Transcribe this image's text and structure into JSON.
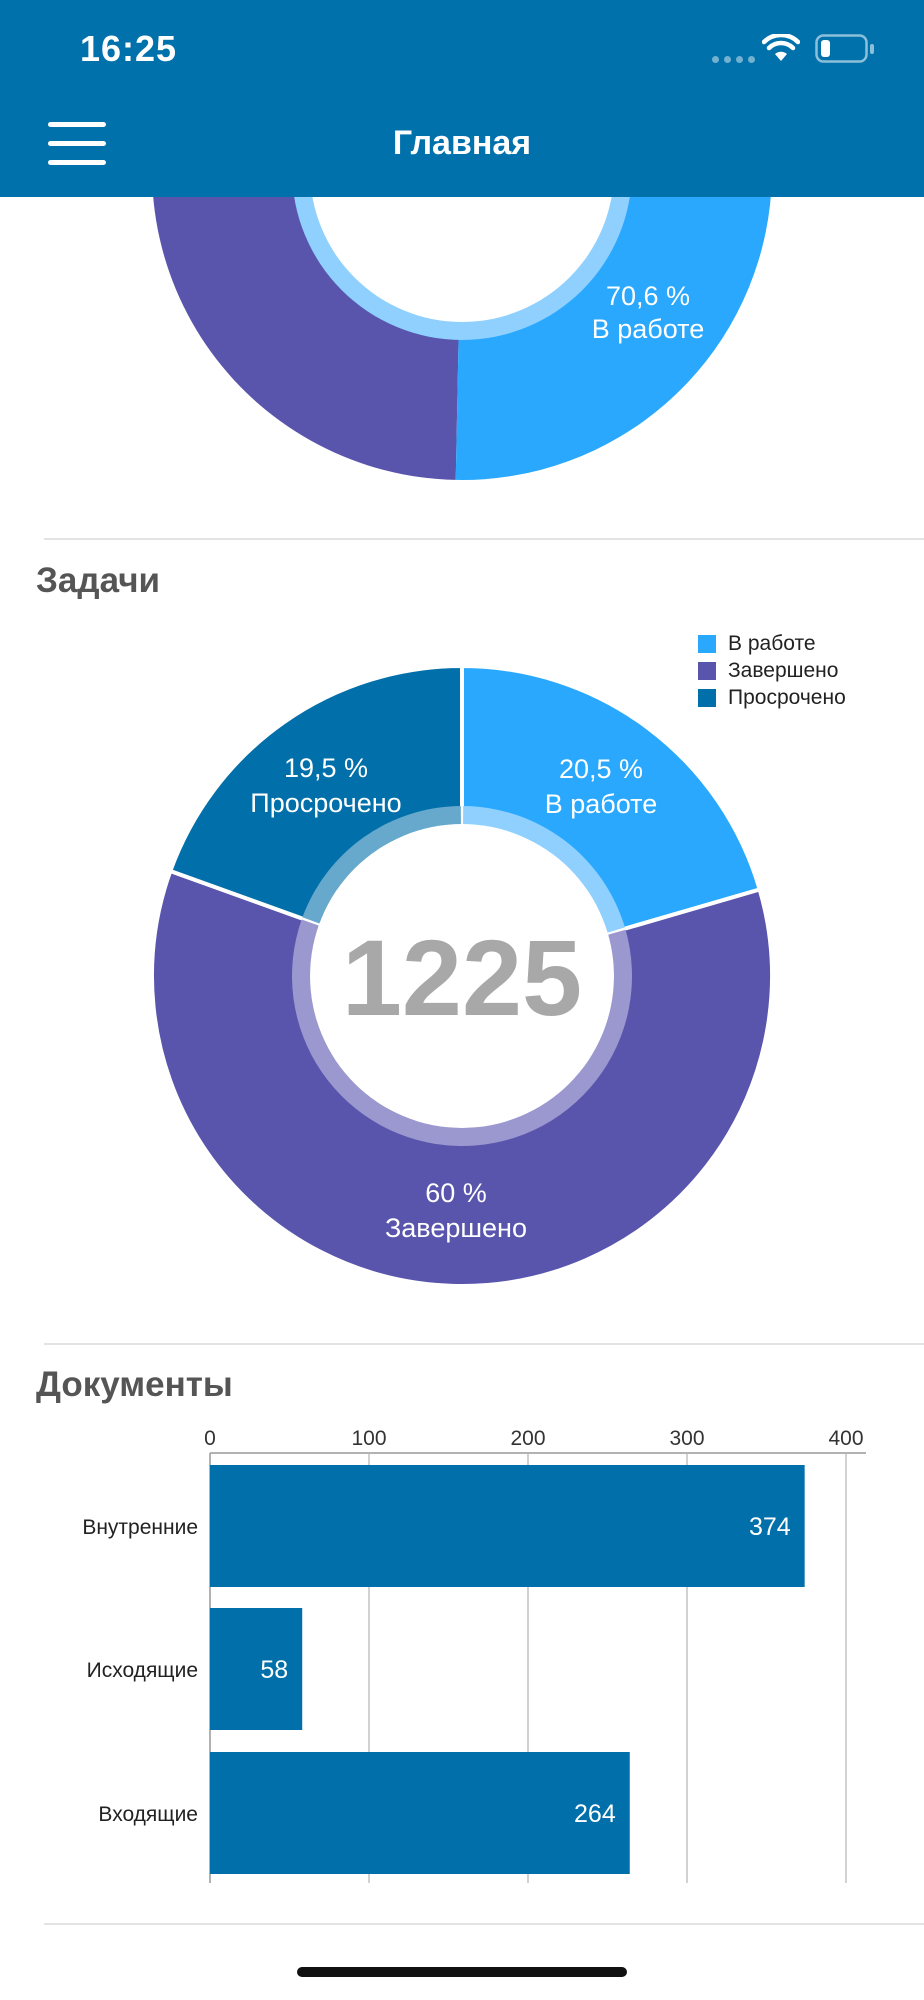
{
  "status_bar": {
    "time": "16:25"
  },
  "header": {
    "title": "Главная"
  },
  "top_chart": {
    "colors": {
      "in_progress": "#29a8fe",
      "done": "#5955ad",
      "inner_ring": "#8fd0fe"
    },
    "partial_center_text": "",
    "label_percent": "70,6 %",
    "label_name": "В работе"
  },
  "tasks": {
    "title": "Задачи",
    "total": "1225",
    "legend": [
      {
        "label": "В работе",
        "color": "#29a8fe"
      },
      {
        "label": "Завершено",
        "color": "#5955ad"
      },
      {
        "label": "Просрочено",
        "color": "#0170aa"
      }
    ],
    "slice_labels": {
      "in_progress_percent": "20,5 %",
      "in_progress_name": "В работе",
      "done_percent": "60 %",
      "done_name": "Завершено",
      "overdue_percent": "19,5 %",
      "overdue_name": "Просрочено"
    }
  },
  "documents": {
    "title": "Документы",
    "axis_ticks": [
      "0",
      "100",
      "200",
      "300",
      "400"
    ],
    "categories": [
      "Внутренние",
      "Исходящие",
      "Входящие"
    ],
    "value_labels": [
      "374",
      "58",
      "264"
    ]
  },
  "chart_data": [
    {
      "type": "pie",
      "labels": [
        "В работе",
        "Завершено"
      ],
      "values": [
        70.6,
        29.4
      ],
      "donut": true
    },
    {
      "type": "pie",
      "title": "Задачи",
      "total": 1225,
      "labels": [
        "В работе",
        "Завершено",
        "Просрочено"
      ],
      "values": [
        20.5,
        60,
        19.5
      ],
      "colors": [
        "#29a8fe",
        "#5955ad",
        "#0170aa"
      ],
      "legend": "top-right",
      "donut": true
    },
    {
      "type": "bar",
      "orientation": "horizontal",
      "title": "Документы",
      "categories": [
        "Внутренние",
        "Исходящие",
        "Входящие"
      ],
      "values": [
        374,
        58,
        264
      ],
      "xlim": [
        0,
        400
      ],
      "ticks": [
        0,
        100,
        200,
        300,
        400
      ],
      "grid": true,
      "color": "#0170aa"
    }
  ]
}
